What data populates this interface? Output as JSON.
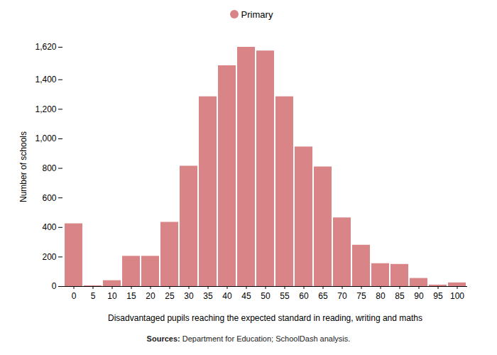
{
  "chart_data": {
    "type": "bar",
    "xlabel": "Disadvantaged pupils reaching the expected standard in reading, writing and maths",
    "ylabel": "Number of schools",
    "source": "Sources: Department for Education; SchoolDash analysis.",
    "categories": [
      0,
      5,
      10,
      15,
      20,
      25,
      30,
      35,
      40,
      45,
      50,
      55,
      60,
      65,
      70,
      75,
      80,
      85,
      90,
      95,
      100
    ],
    "series": [
      {
        "name": "Primary",
        "color": "#d98587",
        "values": [
          425,
          5,
          40,
          205,
          205,
          435,
          815,
          1285,
          1495,
          1620,
          1595,
          1285,
          945,
          810,
          465,
          280,
          155,
          150,
          55,
          10,
          25
        ]
      }
    ],
    "ylim": [
      0,
      1620
    ],
    "yticks": [
      0,
      200,
      400,
      600,
      800,
      {
        "value": 1000,
        "label": "1,000"
      },
      {
        "value": 1200,
        "label": "1,200"
      },
      {
        "value": 1400,
        "label": "1,400"
      },
      {
        "value": 1620,
        "label": "1,620"
      }
    ],
    "legend": "top",
    "grid": false
  }
}
